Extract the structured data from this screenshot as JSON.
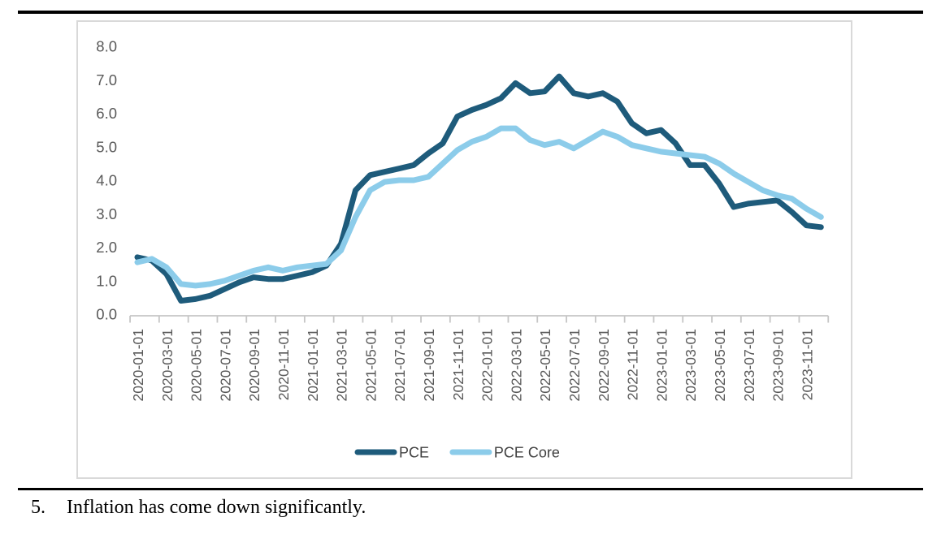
{
  "page": {
    "caption": {
      "number": "5.",
      "text": "Inflation has come down significantly."
    }
  },
  "chart_data": {
    "type": "line",
    "title": "",
    "xlabel": "",
    "ylabel": "",
    "grid": false,
    "legend_position": "bottom",
    "ylim": [
      0,
      8
    ],
    "ytick_step": 1,
    "ytick_labels": [
      "0.0",
      "1.0",
      "2.0",
      "3.0",
      "4.0",
      "5.0",
      "6.0",
      "7.0",
      "8.0"
    ],
    "xtick_label_every": 2,
    "xtick_labels_shown": [
      "2020-01-01",
      "2020-03-01",
      "2020-05-01",
      "2020-07-01",
      "2020-09-01",
      "2020-11-01",
      "2021-01-01",
      "2021-03-01",
      "2021-05-01",
      "2021-07-01",
      "2021-09-01",
      "2021-11-01",
      "2022-01-01",
      "2022-03-01",
      "2022-05-01",
      "2022-07-01",
      "2022-09-01",
      "2022-11-01",
      "2023-01-01",
      "2023-03-01",
      "2023-05-01",
      "2023-07-01",
      "2023-09-01",
      "2023-11-01"
    ],
    "x": [
      "2020-01-01",
      "2020-02-01",
      "2020-03-01",
      "2020-04-01",
      "2020-05-01",
      "2020-06-01",
      "2020-07-01",
      "2020-08-01",
      "2020-09-01",
      "2020-10-01",
      "2020-11-01",
      "2020-12-01",
      "2021-01-01",
      "2021-02-01",
      "2021-03-01",
      "2021-04-01",
      "2021-05-01",
      "2021-06-01",
      "2021-07-01",
      "2021-08-01",
      "2021-09-01",
      "2021-10-01",
      "2021-11-01",
      "2021-12-01",
      "2022-01-01",
      "2022-02-01",
      "2022-03-01",
      "2022-04-01",
      "2022-05-01",
      "2022-06-01",
      "2022-07-01",
      "2022-08-01",
      "2022-09-01",
      "2022-10-01",
      "2022-11-01",
      "2022-12-01",
      "2023-01-01",
      "2023-02-01",
      "2023-03-01",
      "2023-04-01",
      "2023-05-01",
      "2023-06-01",
      "2023-07-01",
      "2023-08-01",
      "2023-09-01",
      "2023-10-01",
      "2023-11-01",
      "2023-12-01"
    ],
    "series": [
      {
        "name": "PCE",
        "color": "#1e5b7b",
        "values": [
          1.7,
          1.6,
          1.2,
          0.4,
          0.45,
          0.55,
          0.75,
          0.95,
          1.1,
          1.05,
          1.05,
          1.15,
          1.25,
          1.45,
          2.1,
          3.7,
          4.15,
          4.25,
          4.35,
          4.45,
          4.8,
          5.1,
          5.9,
          6.1,
          6.25,
          6.45,
          6.9,
          6.6,
          6.65,
          7.1,
          6.6,
          6.5,
          6.6,
          6.35,
          5.7,
          5.4,
          5.5,
          5.1,
          4.45,
          4.45,
          3.9,
          3.2,
          3.3,
          3.35,
          3.4,
          3.05,
          2.65,
          2.6
        ]
      },
      {
        "name": "PCE Core",
        "color": "#8cccea",
        "values": [
          1.55,
          1.65,
          1.4,
          0.9,
          0.85,
          0.9,
          1.0,
          1.15,
          1.3,
          1.4,
          1.3,
          1.4,
          1.45,
          1.5,
          1.9,
          2.9,
          3.7,
          3.95,
          4.0,
          4.0,
          4.1,
          4.5,
          4.9,
          5.15,
          5.3,
          5.55,
          5.55,
          5.2,
          5.05,
          5.15,
          4.95,
          5.2,
          5.45,
          5.3,
          5.05,
          4.95,
          4.85,
          4.8,
          4.75,
          4.7,
          4.5,
          4.2,
          3.95,
          3.7,
          3.55,
          3.45,
          3.15,
          2.9
        ]
      }
    ],
    "axis_line_color": "#c6c6c6",
    "tick_label_color": "#595959",
    "legend_text_color": "#404040"
  }
}
